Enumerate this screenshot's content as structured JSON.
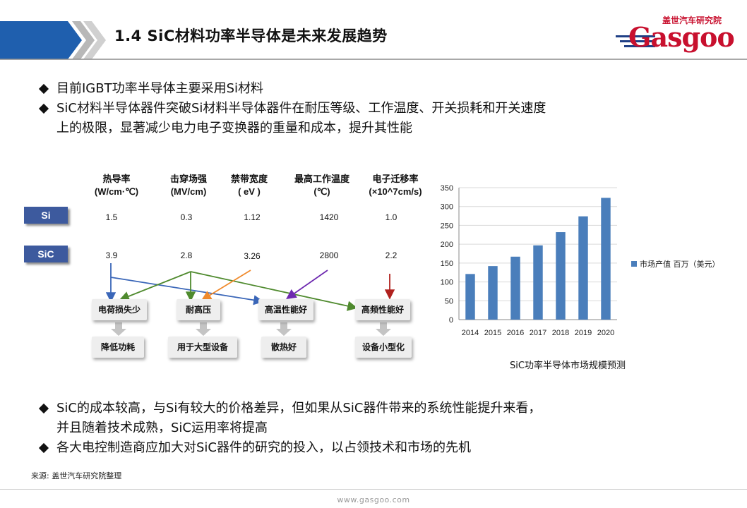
{
  "header": {
    "title": "1.4 SiC材料功率半导体是未来发展趋势",
    "logo_cn": "盖世汽车研究院",
    "logo_word": "Gasgoo"
  },
  "bullets_top": [
    "目前IGBT功率半导体主要采用Si材料",
    "SiC材料半导体器件突破Si材料半导体器件在耐压等级、工作温度、开关损耗和开关速度",
    "上的极限，显著减少电力电子变换器的重量和成本，提升其性能"
  ],
  "comparison": {
    "columns": [
      {
        "name": "热导率",
        "unit": "(W/cm·℃)"
      },
      {
        "name": "击穿场强",
        "unit": "(MV/cm)"
      },
      {
        "name": "禁带宽度",
        "unit": "( eV )"
      },
      {
        "name": "最高工作温度",
        "unit": "(℃)"
      },
      {
        "name": "电子迁移率",
        "unit": "(×10^7cm/s)"
      }
    ],
    "rows": [
      {
        "label": "Si",
        "values": [
          "1.5",
          "0.3",
          "1.12",
          "1420",
          "1.0"
        ]
      },
      {
        "label": "SiC",
        "values": [
          "3.9",
          "2.8",
          "3.26",
          "2800",
          "2.2"
        ]
      }
    ],
    "effects": [
      "电荷损失少",
      "耐高压",
      "高温性能好",
      "高频性能好"
    ],
    "results": [
      "降低功耗",
      "用于大型设备",
      "散热好",
      "设备小型化"
    ]
  },
  "chart_data": {
    "type": "bar",
    "categories": [
      "2014",
      "2015",
      "2016",
      "2017",
      "2018",
      "2019",
      "2020"
    ],
    "series": [
      {
        "name": "市场产值 百万（美元）",
        "values": [
          121,
          142,
          167,
          197,
          232,
          274,
          323
        ],
        "color": "#4a7ebb"
      }
    ],
    "ylim": [
      0,
      350
    ],
    "yticks": [
      0,
      50,
      100,
      150,
      200,
      250,
      300,
      350
    ],
    "grid": true,
    "legend_position": "right"
  },
  "chart_caption": "SiC功率半导体市场规模预测",
  "bullets_bottom": [
    "SiC的成本较高，与Si有较大的价格差异，但如果从SiC器件带来的系统性能提升来看，",
    "并且随着技术成熟，SiC运用率将提高",
    "各大电控制造商应加大对SiC器件的研究的投入，以占领技术和市场的先机"
  ],
  "source": "来源: 盖世汽车研究院整理",
  "footer_url": "www.gasgoo.com"
}
